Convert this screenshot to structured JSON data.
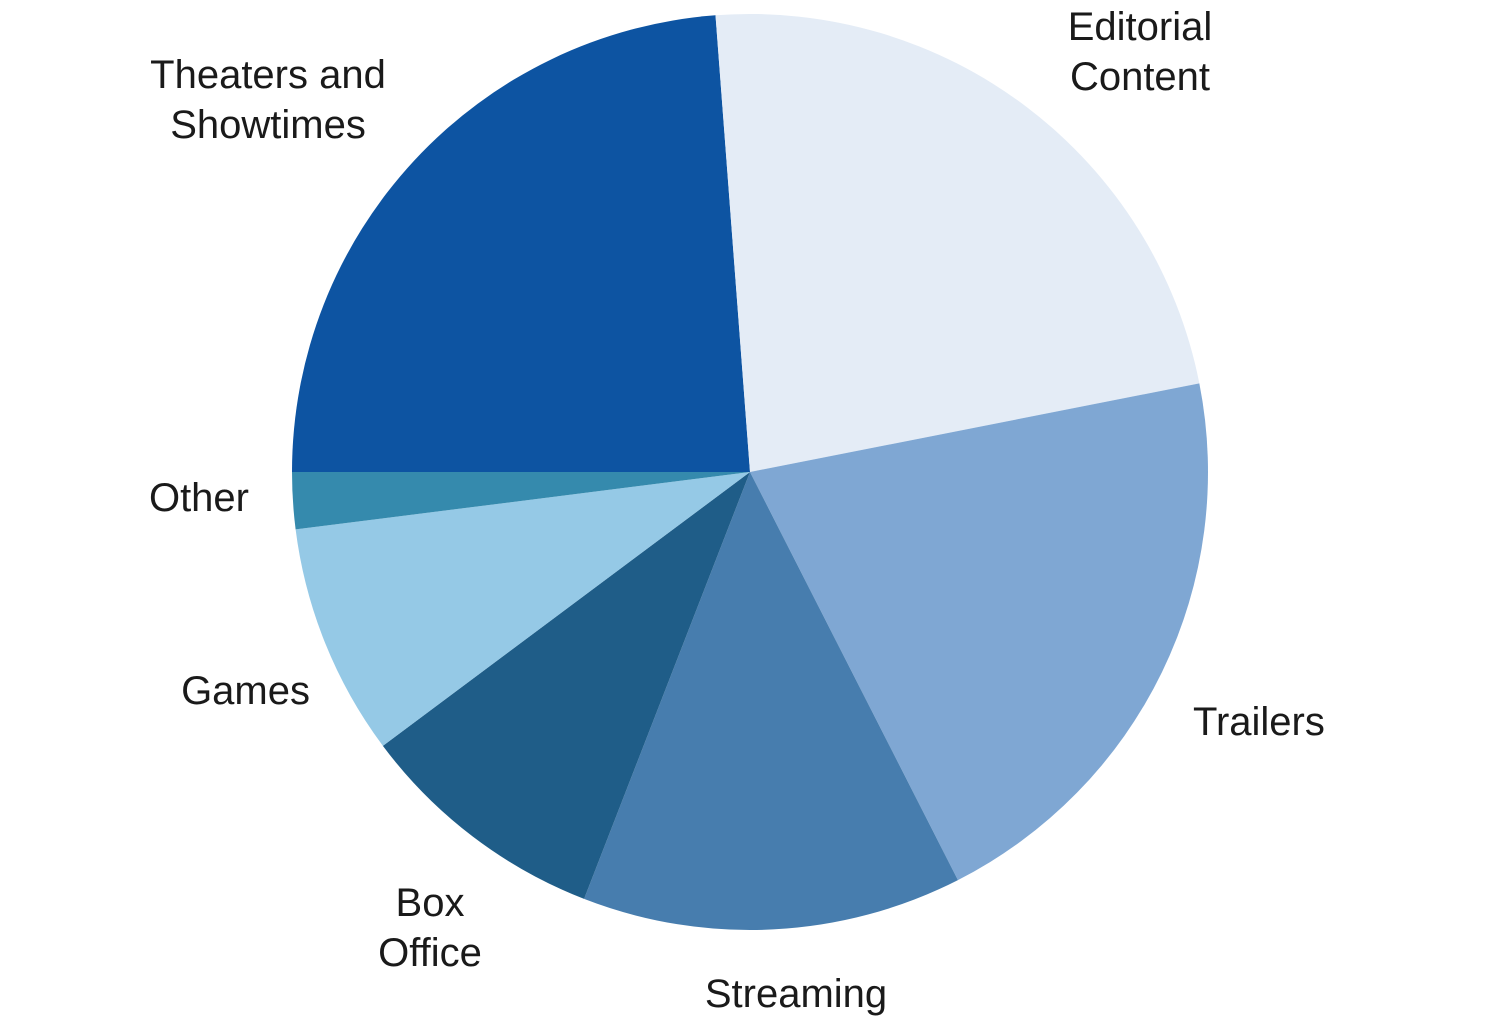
{
  "chart_data": {
    "type": "pie",
    "title": "",
    "start_angle_deg": 0,
    "direction": "counterclockwise",
    "slices": [
      {
        "label": "Theaters and Showtimes",
        "value": 23.8,
        "color": "#0d54a2"
      },
      {
        "label": "Editorial Content",
        "value": 23.1,
        "color": "#e4ecf6"
      },
      {
        "label": "Trailers",
        "value": 20.6,
        "color": "#7fa7d3"
      },
      {
        "label": "Streaming",
        "value": 13.4,
        "color": "#477dae"
      },
      {
        "label": "Box Office",
        "value": 8.9,
        "color": "#1f5d88"
      },
      {
        "label": "Games",
        "value": 8.2,
        "color": "#95c9e6"
      },
      {
        "label": "Other",
        "value": 2.0,
        "color": "#358aad"
      }
    ]
  }
}
